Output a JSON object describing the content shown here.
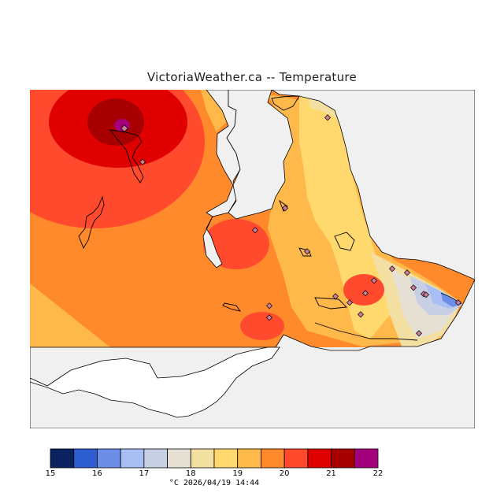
{
  "title": "VictoriaWeather.ca -- Temperature",
  "timestamp": "°C  2026/04/19 14:44",
  "legend": {
    "ticks": [
      "15",
      "16",
      "17",
      "18",
      "19",
      "20",
      "21",
      "22"
    ],
    "colors": [
      "#0b2361",
      "#2e5dd0",
      "#6d8ee6",
      "#a9bff4",
      "#c7cfe4",
      "#e6dfd4",
      "#f3dfa2",
      "#ffd86e",
      "#ffb94a",
      "#ff8a2c",
      "#ff4a2e",
      "#e10000",
      "#a80000",
      "#a4007d"
    ]
  },
  "colors": {
    "land": "#ffffff",
    "water": "#f0f0f0",
    "coast": "#000000",
    "station_marker": "#c87f9a"
  }
}
